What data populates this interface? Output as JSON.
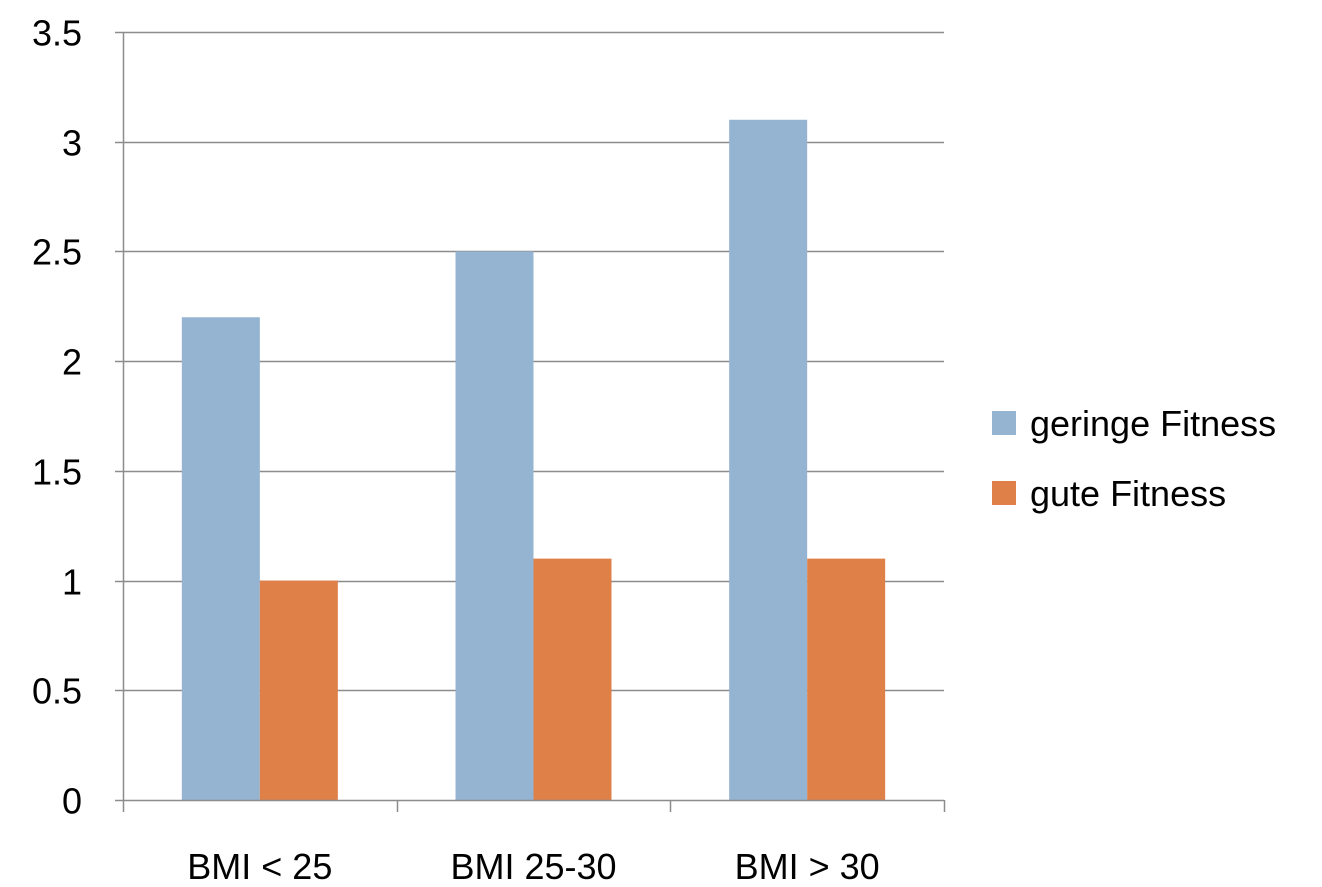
{
  "chart_data": {
    "type": "bar",
    "title": "",
    "xlabel": "",
    "ylabel": "",
    "categories": [
      "BMI < 25",
      "BMI 25-30",
      "BMI > 30"
    ],
    "series": [
      {
        "name": "geringe Fitness",
        "values": [
          2.2,
          2.5,
          3.1
        ],
        "color": "#95b4d2"
      },
      {
        "name": "gute Fitness",
        "values": [
          1.0,
          1.1,
          1.1
        ],
        "color": "#de8048"
      }
    ],
    "ylim": [
      0,
      3.5
    ],
    "yticks": [
      "0",
      "0.5",
      "1",
      "1.5",
      "2",
      "2.5",
      "3",
      "3.5"
    ],
    "grid": true,
    "legend_position": "right",
    "colors": {
      "gridline": "#8c8c8c",
      "axis": "#8c8c8c"
    }
  }
}
